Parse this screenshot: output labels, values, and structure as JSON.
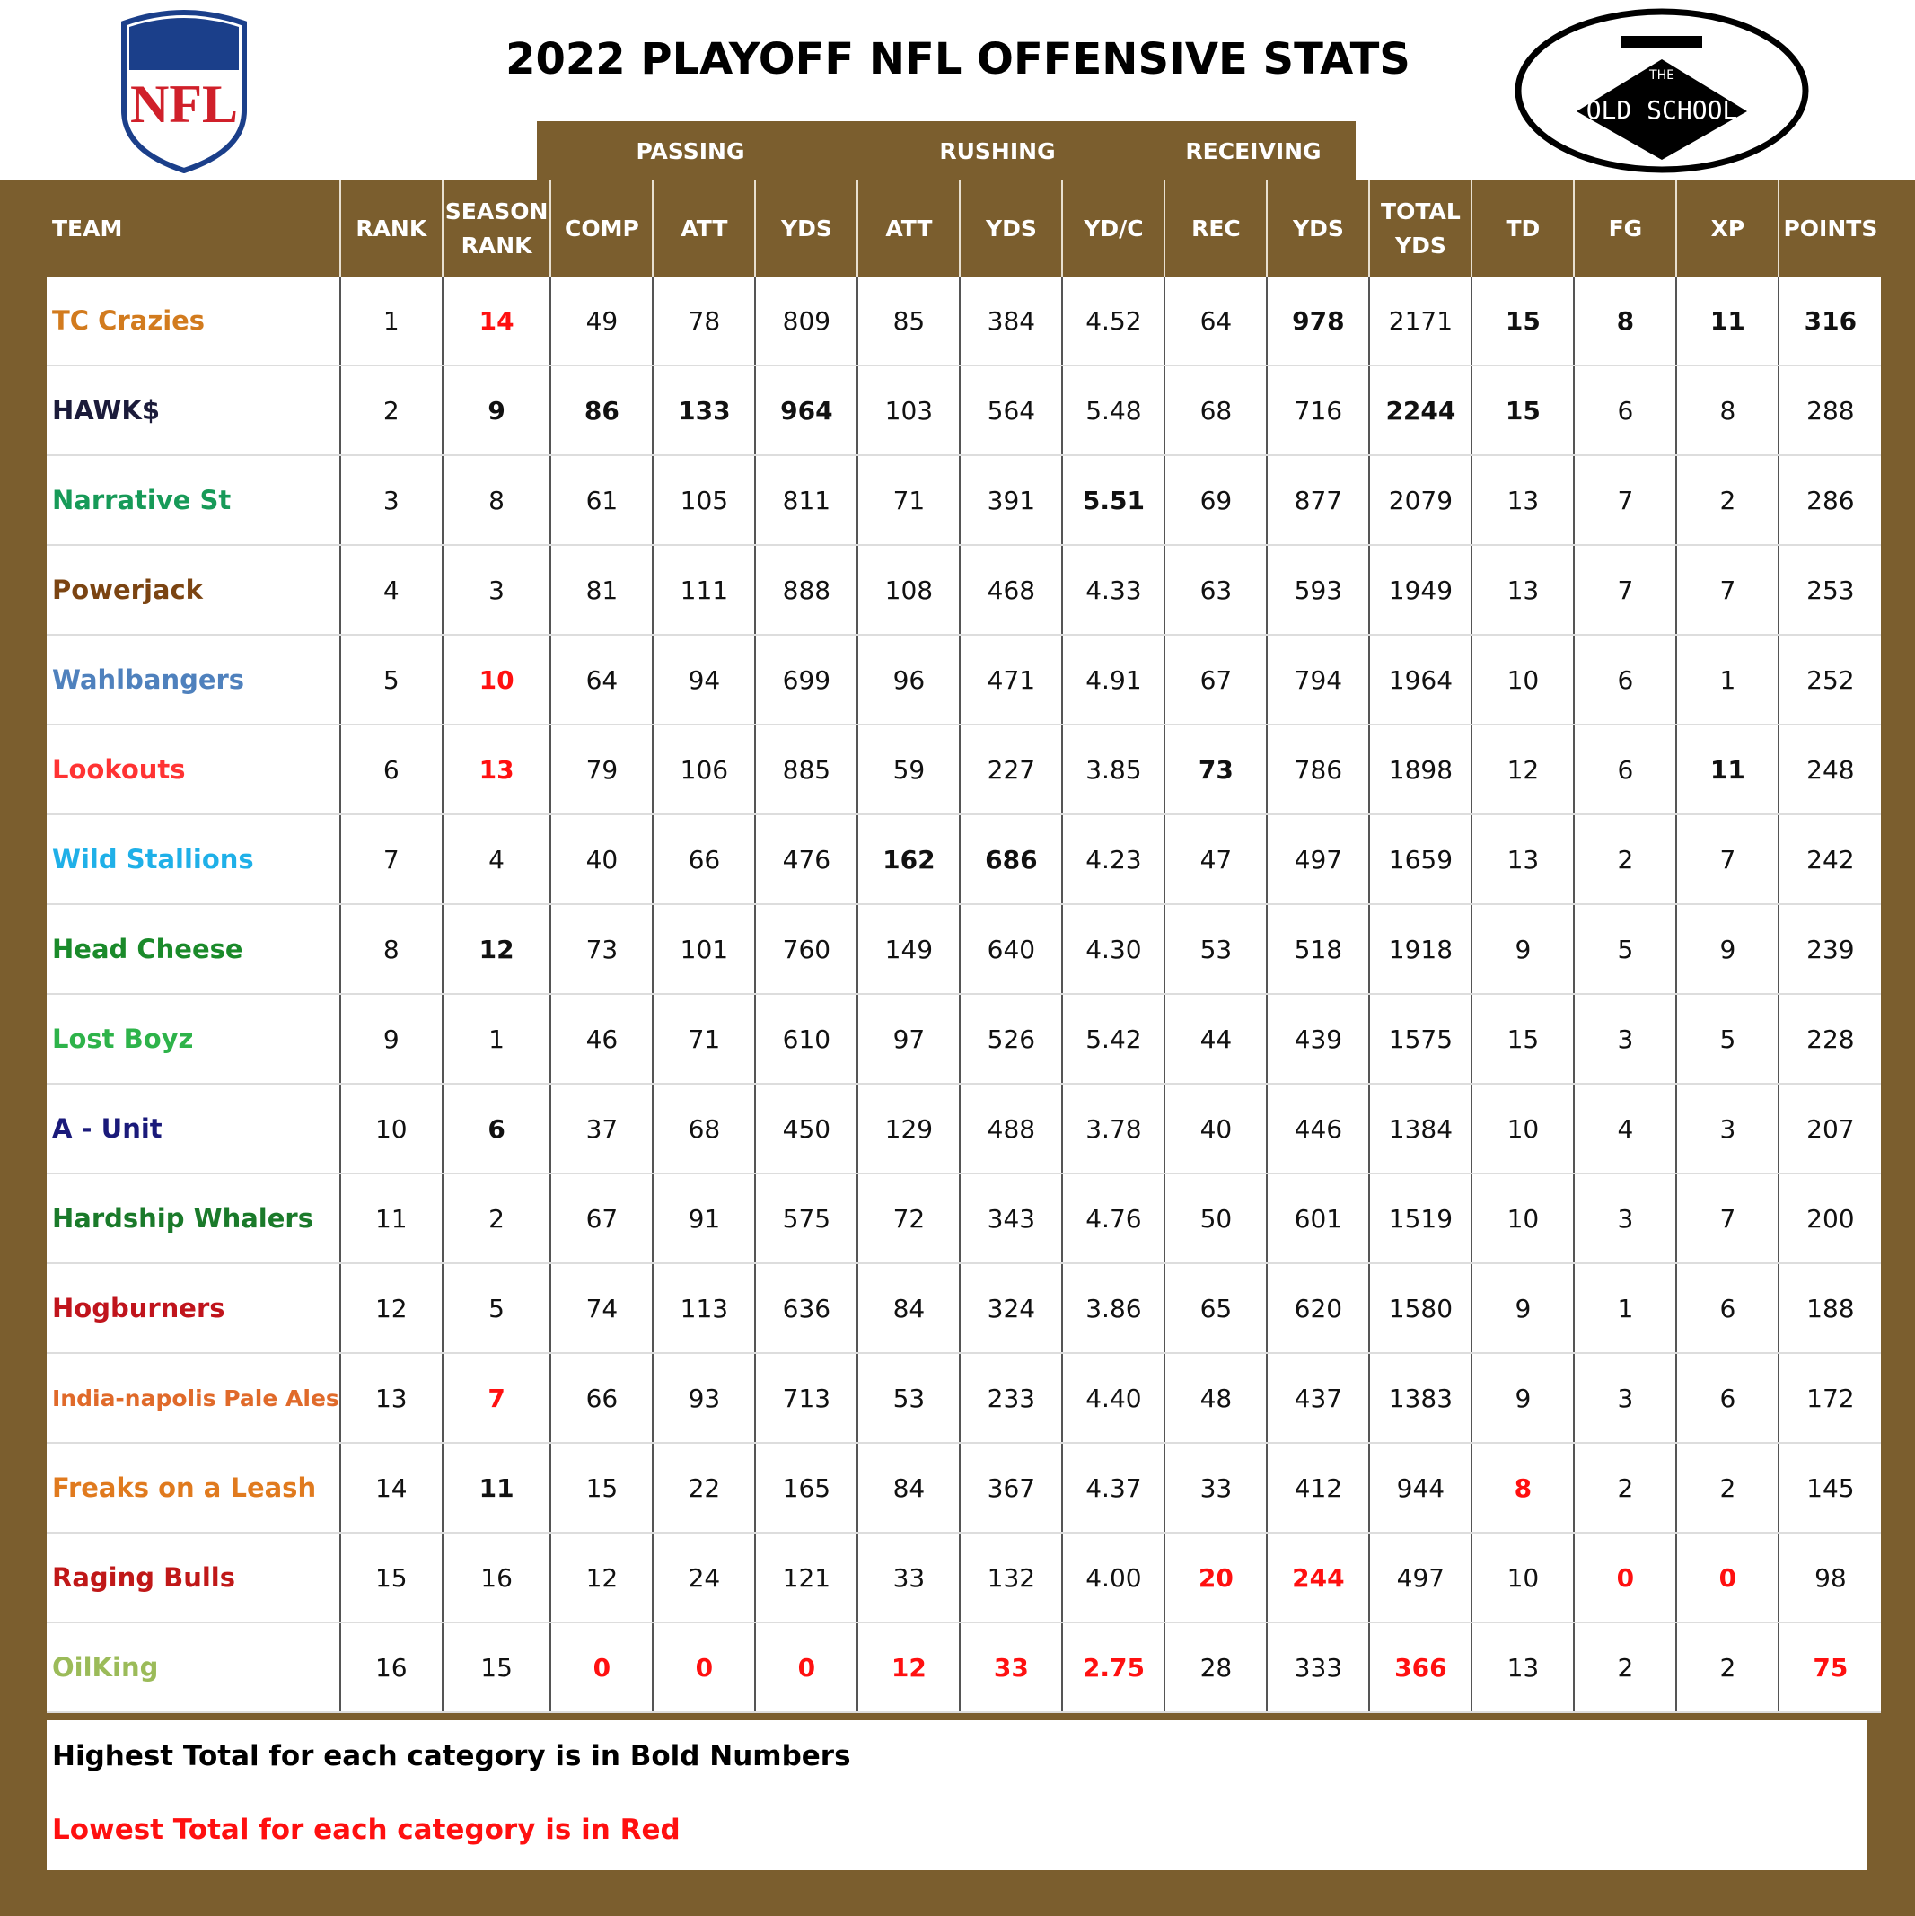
{
  "header": {
    "title": "2022 PLAYOFF NFL OFFENSIVE STATS",
    "left_logo": "NFL",
    "right_logo": {
      "small": "THE",
      "main": "OLD SCHOOL"
    }
  },
  "table": {
    "groups": [
      "PASSING",
      "RUSHING",
      "RECEIVING"
    ],
    "columns": [
      "TEAM",
      "RANK",
      "SEASON RANK",
      "COMP",
      "ATT",
      "YDS",
      "ATT",
      "YDS",
      "YD/C",
      "REC",
      "YDS",
      "TOTAL YDS",
      "TD",
      "FG",
      "XP",
      "POINTS"
    ],
    "rows": [
      {
        "team": "TC Crazies",
        "color": "#d27b1e",
        "values": [
          "1",
          "14",
          "49",
          "78",
          "809",
          "85",
          "384",
          "4.52",
          "64",
          "978",
          "2171",
          "15",
          "8",
          "11",
          "316"
        ]
      },
      {
        "team": "HAWK$",
        "color": "#1b1b3a",
        "values": [
          "2",
          "9",
          "86",
          "133",
          "964",
          "103",
          "564",
          "5.48",
          "68",
          "716",
          "2244",
          "15",
          "6",
          "8",
          "288"
        ]
      },
      {
        "team": "Narrative St",
        "color": "#179a58",
        "values": [
          "3",
          "8",
          "61",
          "105",
          "811",
          "71",
          "391",
          "5.51",
          "69",
          "877",
          "2079",
          "13",
          "7",
          "2",
          "286"
        ]
      },
      {
        "team": "Powerjack",
        "color": "#7b4412",
        "values": [
          "4",
          "3",
          "81",
          "111",
          "888",
          "108",
          "468",
          "4.33",
          "63",
          "593",
          "1949",
          "13",
          "7",
          "7",
          "253"
        ]
      },
      {
        "team": "Wahlbangers",
        "color": "#4f81bd",
        "values": [
          "5",
          "10",
          "64",
          "94",
          "699",
          "96",
          "471",
          "4.91",
          "67",
          "794",
          "1964",
          "10",
          "6",
          "1",
          "252"
        ]
      },
      {
        "team": "Lookouts",
        "color": "#ff3333",
        "values": [
          "6",
          "13",
          "79",
          "106",
          "885",
          "59",
          "227",
          "3.85",
          "73",
          "786",
          "1898",
          "12",
          "6",
          "11",
          "248"
        ]
      },
      {
        "team": "Wild Stallions",
        "color": "#1fb0e8",
        "values": [
          "7",
          "4",
          "40",
          "66",
          "476",
          "162",
          "686",
          "4.23",
          "47",
          "497",
          "1659",
          "13",
          "2",
          "7",
          "242"
        ]
      },
      {
        "team": "Head Cheese",
        "color": "#1a8a2a",
        "values": [
          "8",
          "12",
          "73",
          "101",
          "760",
          "149",
          "640",
          "4.30",
          "53",
          "518",
          "1918",
          "9",
          "5",
          "9",
          "239"
        ]
      },
      {
        "team": "Lost Boyz",
        "color": "#2eb34a",
        "values": [
          "9",
          "1",
          "46",
          "71",
          "610",
          "97",
          "526",
          "5.42",
          "44",
          "439",
          "1575",
          "15",
          "3",
          "5",
          "228"
        ]
      },
      {
        "team": "A - Unit",
        "color": "#1a1a7a",
        "values": [
          "10",
          "6",
          "37",
          "68",
          "450",
          "129",
          "488",
          "3.78",
          "40",
          "446",
          "1384",
          "10",
          "4",
          "3",
          "207"
        ]
      },
      {
        "team": "Hardship Whalers",
        "color": "#1a7a2a",
        "values": [
          "11",
          "2",
          "67",
          "91",
          "575",
          "72",
          "343",
          "4.76",
          "50",
          "601",
          "1519",
          "10",
          "3",
          "7",
          "200"
        ]
      },
      {
        "team": "Hogburners",
        "color": "#c0141c",
        "values": [
          "12",
          "5",
          "74",
          "113",
          "636",
          "84",
          "324",
          "3.86",
          "65",
          "620",
          "1580",
          "9",
          "1",
          "6",
          "188"
        ]
      },
      {
        "team": "India-napolis Pale Ales",
        "color": "#e06a2a",
        "values": [
          "13",
          "7",
          "66",
          "93",
          "713",
          "53",
          "233",
          "4.40",
          "48",
          "437",
          "1383",
          "9",
          "3",
          "6",
          "172"
        ]
      },
      {
        "team": "Freaks on a Leash",
        "color": "#e07a1e",
        "values": [
          "14",
          "11",
          "15",
          "22",
          "165",
          "84",
          "367",
          "4.37",
          "33",
          "412",
          "944",
          "8",
          "2",
          "2",
          "145"
        ]
      },
      {
        "team": "Raging Bulls",
        "color": "#c01818",
        "values": [
          "15",
          "16",
          "12",
          "24",
          "121",
          "33",
          "132",
          "4.00",
          "20",
          "244",
          "497",
          "10",
          "0",
          "0",
          "98"
        ]
      },
      {
        "team": "OilKing",
        "color": "#9bbb59",
        "values": [
          "16",
          "15",
          "0",
          "0",
          "0",
          "12",
          "33",
          "2.75",
          "28",
          "333",
          "366",
          "13",
          "2",
          "2",
          "75"
        ]
      }
    ]
  },
  "notes": [
    "Highest Total for each category is in Bold Numbers",
    "Lowest Total for each category is in Red"
  ]
}
